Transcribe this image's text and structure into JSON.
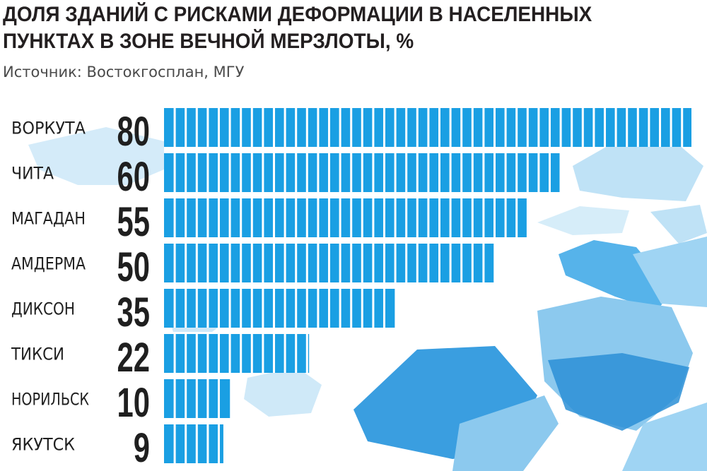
{
  "chart_data": {
    "type": "bar",
    "orientation": "horizontal",
    "title": "ДОЛЯ ЗДАНИЙ С РИСКАМИ ДЕФОРМАЦИИ В НАСЕЛЕННЫХ ПУНКТАХ В ЗОНЕ ВЕЧНОЙ МЕРЗЛОТЫ, %",
    "subtitle": "Источник: Востокгосплан, МГУ",
    "categories": [
      "ВОРКУТА",
      "ЧИТА",
      "МАГАДАН",
      "АМДЕРМА",
      "ДИКСОН",
      "ТИКСИ",
      "НОРИЛЬСК",
      "ЯКУТСК"
    ],
    "values": [
      80,
      60,
      55,
      50,
      35,
      22,
      10,
      9
    ],
    "xlim": [
      0,
      80
    ],
    "grid": false,
    "legend": "none",
    "bar_color": "#1a9fe3"
  },
  "colors": {
    "bar": "#1a9fe3",
    "bar_gap": "#ffffff",
    "ice_light": "#cfe9f8",
    "ice_mid": "#8cc9ee",
    "ice_dark": "#3a9ee0",
    "text": "#1f1f1f"
  }
}
